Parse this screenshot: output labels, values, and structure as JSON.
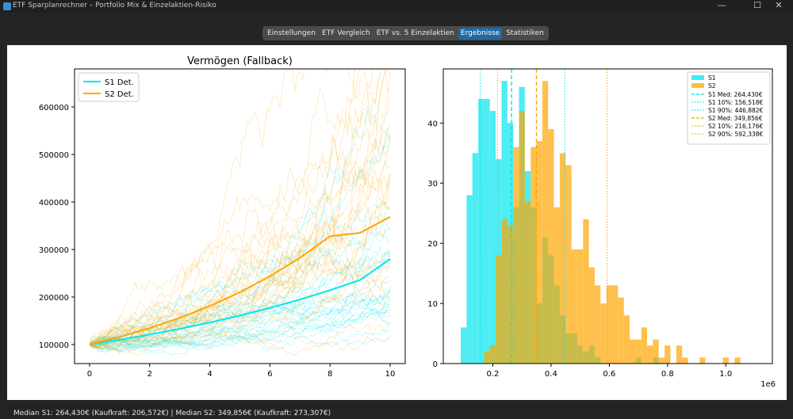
{
  "window": {
    "title": "ETF Sparplanrechner – Portfolio Mix & Einzelaktien-Risiko",
    "minimize_glyph": "—",
    "maximize_glyph": "☐",
    "close_glyph": "✕"
  },
  "tabs": [
    {
      "label": "Einstellungen",
      "active": false
    },
    {
      "label": "ETF Vergleich",
      "active": false
    },
    {
      "label": "ETF vs. 5 Einzelaktien",
      "active": false
    },
    {
      "label": "Ergebnisse",
      "active": true
    },
    {
      "label": "Statistiken",
      "active": false
    }
  ],
  "status": {
    "text": "Median S1: 264,430€ (Kaufkraft: 206,572€) | Median S2: 349,856€ (Kaufkraft: 273,307€)"
  },
  "colors": {
    "s1": "#00e5ee",
    "s2": "#ffa500",
    "tab_active": "#1f6aa5",
    "background": "#242424"
  },
  "chart_data": [
    {
      "type": "line",
      "title": "Vermögen (Fallback)",
      "xlabel": "",
      "ylabel": "",
      "xlim": [
        -0.5,
        10.5
      ],
      "ylim": [
        60000,
        680000
      ],
      "xticks": [
        "0",
        "2",
        "4",
        "6",
        "8",
        "10"
      ],
      "yticks": [
        "100000",
        "200000",
        "300000",
        "400000",
        "500000",
        "600000"
      ],
      "legend_position": "top-left",
      "series": [
        {
          "name": "S1 Det.",
          "color": "#00e5ee",
          "x": [
            0,
            1,
            2,
            3,
            4,
            5,
            6,
            7,
            8,
            9,
            10
          ],
          "values": [
            100000,
            110000,
            121000,
            133100,
            146410,
            161051,
            177156,
            194872,
            214359,
            235795,
            280000
          ]
        },
        {
          "name": "S2 Det.",
          "color": "#ffa500",
          "x": [
            0,
            1,
            2,
            3,
            4,
            5,
            6,
            7,
            8,
            9,
            10
          ],
          "values": [
            100000,
            116000,
            134560,
            156090,
            181064,
            210034,
            243640,
            282622,
            327841,
            335000,
            369000
          ]
        }
      ],
      "simulations": {
        "s1_count": 30,
        "s2_count": 30,
        "note_type": "faint random paths"
      }
    },
    {
      "type": "bar",
      "title": "",
      "xlabel": "",
      "ylabel": "",
      "x_scale_label": "1e6",
      "xlim": [
        0.03,
        1.16
      ],
      "ylim": [
        0,
        49
      ],
      "xticks": [
        "0.2",
        "0.4",
        "0.6",
        "0.8",
        "1.0"
      ],
      "yticks": [
        "0",
        "10",
        "20",
        "30",
        "40"
      ],
      "legend_position": "top-right",
      "series": [
        {
          "name": "S1",
          "color": "#00e5ee",
          "bin_start": 0.09,
          "bin_width": 0.02,
          "values": [
            6,
            28,
            35,
            44,
            44,
            42,
            34,
            47,
            40,
            26,
            46,
            32,
            26,
            10,
            21,
            18,
            13,
            8,
            5,
            5,
            3,
            2,
            3,
            1,
            0,
            0,
            0,
            0,
            0,
            0,
            1,
            0,
            0,
            1,
            0,
            0,
            0
          ]
        },
        {
          "name": "S2",
          "color": "#ffa500",
          "bin_start": 0.17,
          "bin_width": 0.02,
          "values": [
            2,
            3,
            18,
            24,
            23,
            36,
            42,
            27,
            36,
            37,
            47,
            39,
            26,
            35,
            33,
            19,
            19,
            24,
            16,
            13,
            10,
            13,
            13,
            11,
            8,
            4,
            4,
            6,
            3,
            4,
            1,
            3,
            0,
            3,
            1,
            0,
            0,
            1,
            0,
            0,
            0,
            1,
            0,
            1,
            0,
            0
          ]
        }
      ],
      "vlines": [
        {
          "label": "S1 Med: 264,430€",
          "value": 0.26443,
          "style": "dashed",
          "color": "#00e5ee"
        },
        {
          "label": "S1 10%: 156,518€",
          "value": 0.156518,
          "style": "dotted",
          "color": "#00e5ee"
        },
        {
          "label": "S1 90%: 446,882€",
          "value": 0.446882,
          "style": "dotted",
          "color": "#00e5ee"
        },
        {
          "label": "S2 Med: 349,856€",
          "value": 0.349856,
          "style": "dashed",
          "color": "#ffa500"
        },
        {
          "label": "S2 10%: 216,176€",
          "value": 0.216176,
          "style": "dotted",
          "color": "#ffa500"
        },
        {
          "label": "S2 90%: 592,338€",
          "value": 0.592338,
          "style": "dotted",
          "color": "#ffa500"
        }
      ]
    }
  ]
}
